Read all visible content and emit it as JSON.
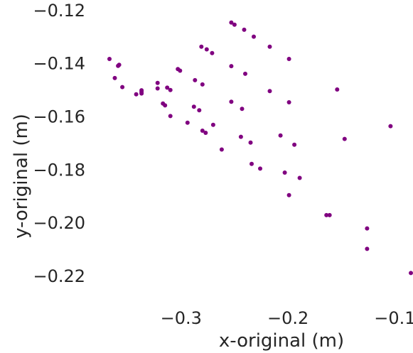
{
  "chart_data": {
    "type": "scatter",
    "xlabel": "x-original (m)",
    "ylabel": "y-original (m)",
    "xlim": [
      -0.375,
      -0.083
    ],
    "ylim": [
      -0.231,
      -0.116
    ],
    "xticks": [
      -0.3,
      -0.2,
      -0.1
    ],
    "xtick_labels": [
      "−0.3",
      "−0.2",
      "−0.1"
    ],
    "yticks": [
      -0.12,
      -0.14,
      -0.16,
      -0.18,
      -0.2,
      -0.22
    ],
    "ytick_labels": [
      "−0.12",
      "−0.14",
      "−0.16",
      "−0.18",
      "−0.20",
      "−0.22"
    ],
    "grid": false,
    "marker_color": "#800080",
    "points": [
      [
        -0.253,
        -0.1245
      ],
      [
        -0.25,
        -0.1253
      ],
      [
        -0.241,
        -0.1272
      ],
      [
        -0.232,
        -0.1298
      ],
      [
        -0.281,
        -0.1336
      ],
      [
        -0.276,
        -0.1346
      ],
      [
        -0.271,
        -0.136
      ],
      [
        -0.217,
        -0.1336
      ],
      [
        -0.199,
        -0.1382
      ],
      [
        -0.253,
        -0.1409
      ],
      [
        -0.24,
        -0.1438
      ],
      [
        -0.367,
        -0.1382
      ],
      [
        -0.358,
        -0.1404
      ],
      [
        -0.359,
        -0.1408
      ],
      [
        -0.303,
        -0.142
      ],
      [
        -0.301,
        -0.1426
      ],
      [
        -0.362,
        -0.1454
      ],
      [
        -0.355,
        -0.1488
      ],
      [
        -0.322,
        -0.1472
      ],
      [
        -0.287,
        -0.1462
      ],
      [
        -0.28,
        -0.1478
      ],
      [
        -0.337,
        -0.15
      ],
      [
        -0.337,
        -0.1506
      ],
      [
        -0.342,
        -0.1515
      ],
      [
        -0.337,
        -0.1512
      ],
      [
        -0.322,
        -0.1493
      ],
      [
        -0.313,
        -0.149
      ],
      [
        -0.31,
        -0.1499
      ],
      [
        -0.217,
        -0.1503
      ],
      [
        -0.154,
        -0.1497
      ],
      [
        -0.253,
        -0.1543
      ],
      [
        -0.199,
        -0.1545
      ],
      [
        -0.317,
        -0.155
      ],
      [
        -0.315,
        -0.1557
      ],
      [
        -0.288,
        -0.1562
      ],
      [
        -0.283,
        -0.1575
      ],
      [
        -0.243,
        -0.157
      ],
      [
        -0.31,
        -0.1597
      ],
      [
        -0.294,
        -0.1622
      ],
      [
        -0.27,
        -0.163
      ],
      [
        -0.28,
        -0.1652
      ],
      [
        -0.277,
        -0.166
      ],
      [
        -0.244,
        -0.1675
      ],
      [
        -0.235,
        -0.1697
      ],
      [
        -0.207,
        -0.167
      ],
      [
        -0.194,
        -0.1705
      ],
      [
        -0.147,
        -0.1683
      ],
      [
        -0.104,
        -0.1635
      ],
      [
        -0.262,
        -0.1723
      ],
      [
        -0.234,
        -0.1777
      ],
      [
        -0.226,
        -0.1795
      ],
      [
        -0.203,
        -0.181
      ],
      [
        -0.189,
        -0.183
      ],
      [
        -0.199,
        -0.1895
      ],
      [
        -0.164,
        -0.197
      ],
      [
        -0.161,
        -0.197
      ],
      [
        -0.126,
        -0.202
      ],
      [
        -0.126,
        -0.2097
      ],
      [
        -0.085,
        -0.2188
      ]
    ]
  }
}
